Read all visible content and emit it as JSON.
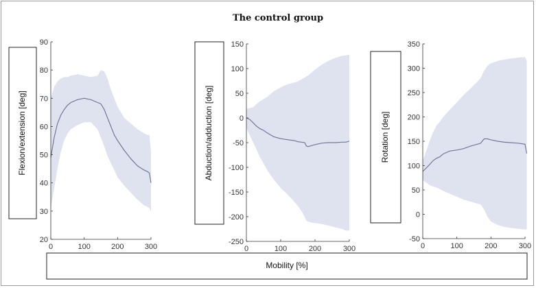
{
  "chart_data": [
    {
      "type": "line",
      "title": "The control group",
      "ylabel": "Flexion/extension [deg]",
      "xlabel": "Mobility [%]",
      "xlim": [
        0,
        300
      ],
      "ylim": [
        20,
        90
      ],
      "xticks": [
        0,
        100,
        200,
        300
      ],
      "yticks": [
        20,
        30,
        40,
        50,
        60,
        70,
        80,
        90
      ],
      "x": [
        0,
        10,
        20,
        30,
        40,
        50,
        60,
        80,
        100,
        120,
        140,
        150,
        160,
        170,
        180,
        190,
        200,
        220,
        240,
        260,
        280,
        290,
        295,
        300
      ],
      "mean": [
        49,
        56,
        61,
        64,
        66,
        67.5,
        68.5,
        69.5,
        70,
        69.5,
        68.5,
        68,
        66,
        63,
        60,
        57,
        55,
        51.5,
        48.5,
        46,
        44.5,
        44,
        43.5,
        40
      ],
      "upper": [
        70,
        74,
        76,
        77,
        77.5,
        77.5,
        78,
        78.5,
        78,
        77.5,
        78,
        80,
        79.5,
        77,
        73,
        70,
        67,
        63,
        61,
        59,
        57.5,
        57,
        57,
        51
      ],
      "lower": [
        31,
        38,
        45,
        51,
        55,
        57.5,
        59,
        60.5,
        61.5,
        61.5,
        59,
        56,
        53,
        49.5,
        47,
        44.5,
        42,
        39,
        36.5,
        34,
        32,
        31.5,
        31,
        30
      ]
    },
    {
      "type": "line",
      "ylabel": "Abduction/adduction [deg]",
      "xlim": [
        0,
        300
      ],
      "ylim": [
        -250,
        150
      ],
      "xticks": [
        0,
        100,
        200,
        300
      ],
      "yticks": [
        -250,
        -200,
        -150,
        -100,
        -50,
        0,
        50,
        100,
        150
      ],
      "x": [
        0,
        10,
        20,
        30,
        40,
        50,
        60,
        80,
        100,
        120,
        140,
        150,
        160,
        170,
        175,
        180,
        190,
        200,
        220,
        240,
        260,
        280,
        290,
        300
      ],
      "mean": [
        0,
        -3,
        -10,
        -17,
        -22,
        -25,
        -30,
        -38,
        -42,
        -44,
        -46,
        -48,
        -49,
        -50,
        -57,
        -58,
        -56,
        -54,
        -51,
        -50,
        -50,
        -49,
        -49,
        -47
      ],
      "upper": [
        18,
        20,
        22,
        28,
        34,
        38,
        42,
        54,
        62,
        68,
        72,
        74,
        78,
        82,
        84,
        86,
        92,
        98,
        108,
        116,
        122,
        126,
        127,
        128
      ],
      "lower": [
        -20,
        -35,
        -50,
        -65,
        -80,
        -92,
        -105,
        -125,
        -142,
        -155,
        -170,
        -178,
        -188,
        -200,
        -208,
        -210,
        -212,
        -213,
        -215,
        -218,
        -222,
        -225,
        -228,
        -228
      ]
    },
    {
      "type": "line",
      "ylabel": "Rotation [deg]",
      "xlim": [
        0,
        300
      ],
      "ylim": [
        -50,
        350
      ],
      "xticks": [
        0,
        100,
        200,
        300
      ],
      "yticks": [
        -50,
        0,
        50,
        100,
        150,
        200,
        250,
        300,
        350
      ],
      "x": [
        0,
        10,
        20,
        30,
        40,
        50,
        60,
        80,
        100,
        120,
        140,
        150,
        160,
        170,
        180,
        190,
        200,
        220,
        240,
        260,
        280,
        300,
        305
      ],
      "mean": [
        88,
        95,
        102,
        110,
        115,
        118,
        124,
        130,
        132,
        135,
        140,
        142,
        144,
        146,
        155,
        155,
        153,
        150,
        148,
        147,
        146,
        144,
        125
      ],
      "upper": [
        110,
        130,
        150,
        168,
        182,
        190,
        200,
        215,
        230,
        245,
        258,
        265,
        272,
        280,
        295,
        305,
        310,
        315,
        318,
        320,
        322,
        323,
        315
      ],
      "lower": [
        70,
        65,
        60,
        57,
        55,
        52,
        48,
        42,
        36,
        30,
        26,
        24,
        22,
        20,
        10,
        -5,
        -15,
        -22,
        -26,
        -28,
        -30,
        -31,
        -31
      ]
    }
  ]
}
